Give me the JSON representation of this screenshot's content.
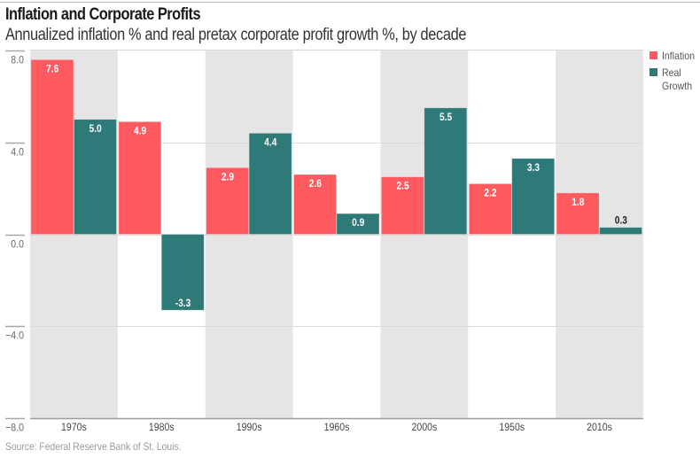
{
  "header": {
    "title": "Inflation and Corporate Profits",
    "subtitle": "Annualized inflation % and real pretax corporate profit growth %, by decade"
  },
  "footer": {
    "source": "Source: Federal Reserve Bank of St. Louis."
  },
  "chart_data": {
    "type": "bar",
    "title": "Inflation and Corporate Profits",
    "subtitle": "Annualized inflation % and real pretax corporate profit growth %, by decade",
    "xlabel": "",
    "ylabel": "",
    "categories": [
      "1970s",
      "1980s",
      "1990s",
      "1960s",
      "2000s",
      "1950s",
      "2010s"
    ],
    "series": [
      {
        "name": "Inflation",
        "color": "#ff5a5f",
        "values": [
          7.6,
          4.9,
          2.9,
          2.6,
          2.5,
          2.2,
          1.8
        ],
        "labels": [
          "7.6",
          "4.9",
          "2.9",
          "2.6",
          "2.5",
          "2.2",
          "1.8"
        ]
      },
      {
        "name": "Real Growth",
        "color": "#2e7a78",
        "values": [
          5.0,
          -3.3,
          4.4,
          0.9,
          5.5,
          3.3,
          0.3
        ],
        "labels": [
          "5.0",
          "-3.3",
          "4.4",
          "0.9",
          "5.5",
          "3.3",
          "0.3"
        ]
      }
    ],
    "ylim": [
      -8,
      8
    ],
    "yticks": [
      8,
      4,
      0,
      -4,
      -8
    ],
    "ytick_labels": [
      "8.0",
      "4.0",
      "0.0",
      "−4.0",
      "−8.0"
    ],
    "grid": true,
    "alternating_band_color": "#e5e5e5",
    "legend_position": "right",
    "legend": [
      {
        "label": "Inflation",
        "color": "#ff5a5f"
      },
      {
        "label": "Real Growth",
        "color": "#2e7a78"
      }
    ]
  }
}
